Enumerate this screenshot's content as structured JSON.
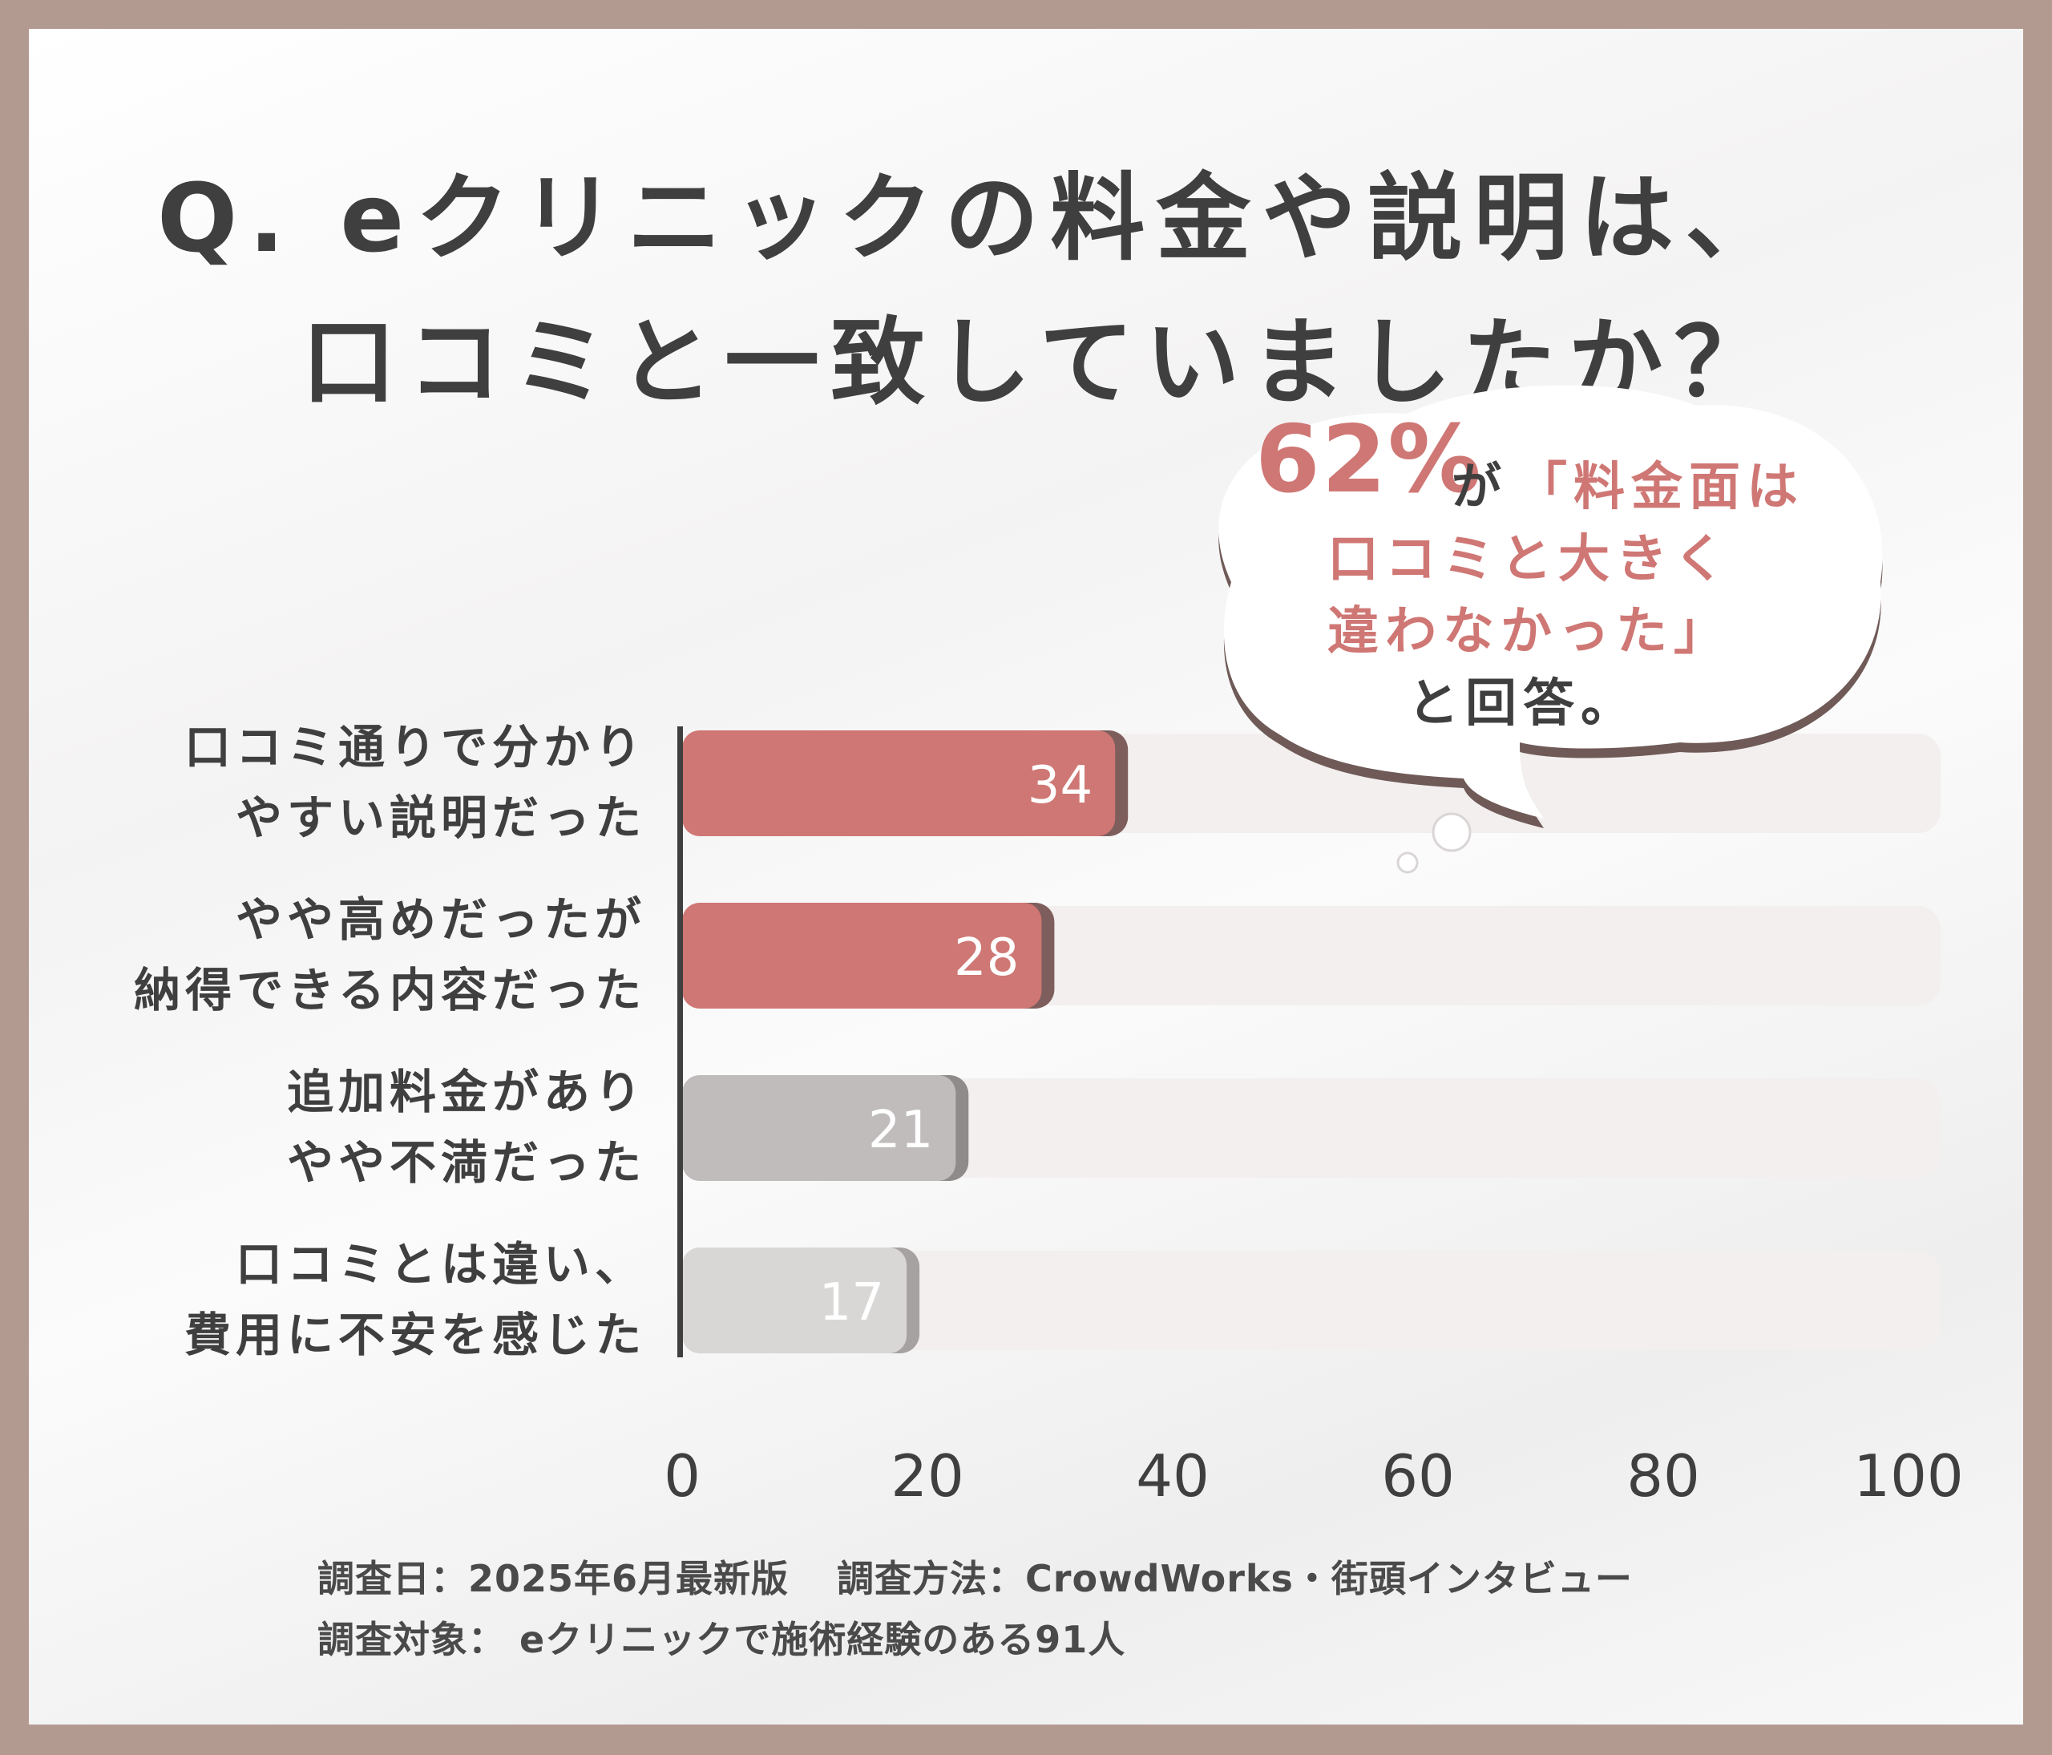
{
  "title": {
    "line1": "Q. eクリニックの料金や説明は、",
    "line2": "口コミと一致していましたか？"
  },
  "callout": {
    "percent": "62%",
    "particle": "が",
    "line1": "「料金面は",
    "line2": "口コミと大きく",
    "line3": "違わなかった」",
    "answer": "と回答。"
  },
  "chart_data": {
    "type": "bar",
    "orientation": "horizontal",
    "categories": [
      [
        "口コミ通りで分かり",
        "やすい説明だった"
      ],
      [
        "やや高めだったが",
        "納得できる内容だった"
      ],
      [
        "追加料金があり",
        "やや不満だった"
      ],
      [
        "口コミとは違い、",
        "費用に不安を感じた"
      ]
    ],
    "values": [
      34,
      28,
      21,
      17
    ],
    "value_labels": [
      "34",
      "28",
      "21",
      "17"
    ],
    "xlim": [
      0,
      100
    ],
    "xticks": [
      0,
      20,
      40,
      60,
      80,
      100
    ],
    "xtick_labels": [
      "0",
      "20",
      "40",
      "60",
      "80",
      "100"
    ],
    "title": "Q. eクリニックの料金や説明は、口コミと一致していましたか？",
    "xlabel": "",
    "ylabel": "",
    "colors": [
      "#cf7774",
      "#cf7774",
      "#bfbcbb",
      "#d9d7d6"
    ],
    "shadow_colors": [
      "#7e5e5c",
      "#7e5e5c",
      "#8f8b8a",
      "#a5a2a1"
    ],
    "track_color": "#f2efee"
  },
  "footnote": {
    "date": "調査日：2025年6月最新版",
    "method": "調査方法：CrowdWorks・街頭インタビュー",
    "target": "調査対象： eクリニックで施術経験のある91人"
  }
}
